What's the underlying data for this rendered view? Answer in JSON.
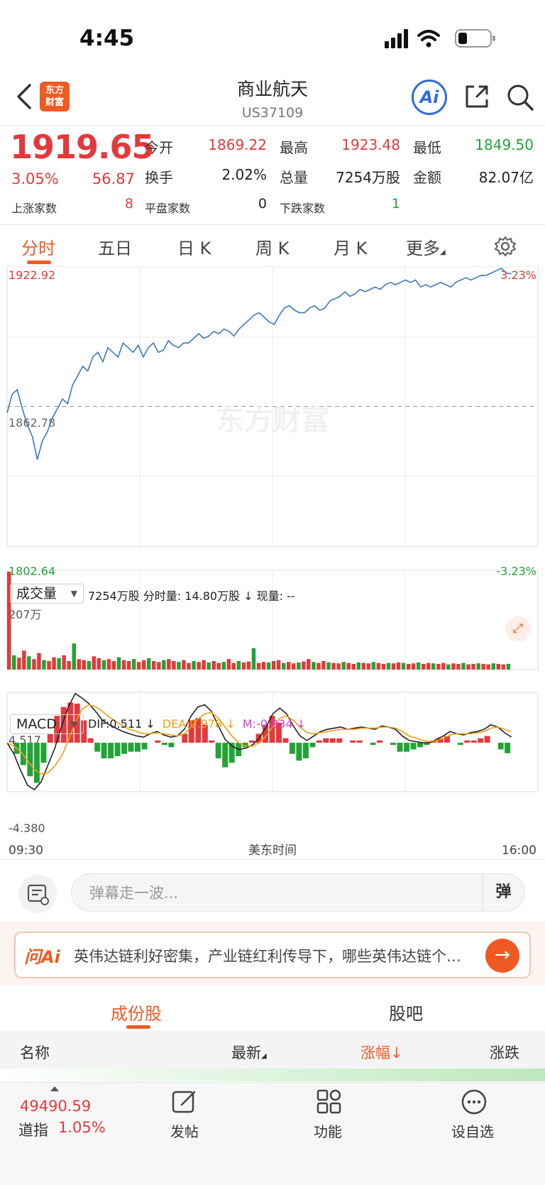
{
  "status_bar": {
    "time": "4:45"
  },
  "header": {
    "title": "商业航天",
    "code": "US37109",
    "logo_text_line1": "东方",
    "logo_text_line2": "财富",
    "ai_label": "Ai"
  },
  "quote": {
    "price": "1919.65",
    "change_pct": "3.05%",
    "change": "56.87",
    "open_label": "今开",
    "open": "1869.22",
    "high_label": "最高",
    "high": "1923.48",
    "low_label": "最低",
    "low": "1849.50",
    "turnover_label": "换手",
    "turnover": "2.02%",
    "volume_label": "总量",
    "volume": "7254万股",
    "amount_label": "金额",
    "amount": "82.07亿",
    "up_label": "上涨家数",
    "up": "8",
    "flat_label": "平盘家数",
    "flat": "0",
    "down_label": "下跌家数",
    "down": "1"
  },
  "tabs": [
    "分时",
    "五日",
    "日 K",
    "周 K",
    "月 K",
    "更多"
  ],
  "chart_data": [
    {
      "type": "line",
      "title": "",
      "y_labels": {
        "top": "1922.92",
        "mid": "1862.78",
        "bottom": "1802.64",
        "top_pct": "3.23%",
        "bottom_pct": "-3.23%"
      },
      "ylim": [
        1802.64,
        1922.92
      ],
      "prev_close": 1862.78,
      "watermark": "东方财富",
      "x_labels": [
        "09:30",
        "美东时间",
        "16:00"
      ],
      "series": [
        {
          "values": [
            1860,
            1868,
            1870,
            1862,
            1855,
            1850,
            1840,
            1848,
            1852,
            1858,
            1862,
            1866,
            1864,
            1872,
            1876,
            1880,
            1878,
            1884,
            1886,
            1882,
            1888,
            1886,
            1884,
            1890,
            1888,
            1886,
            1889,
            1884,
            1888,
            1890,
            1886,
            1887,
            1891,
            1889,
            1888,
            1890,
            1890,
            1892,
            1894,
            1892,
            1893,
            1895,
            1894,
            1896,
            1895,
            1893,
            1896,
            1898,
            1900,
            1902,
            1903,
            1901,
            1899,
            1898,
            1902,
            1905,
            1906,
            1904,
            1903,
            1903,
            1905,
            1906,
            1904,
            1905,
            1908,
            1909,
            1910,
            1912,
            1910,
            1911,
            1913,
            1912,
            1913,
            1914,
            1913,
            1915,
            1916,
            1915,
            1916,
            1917,
            1916,
            1917,
            1914,
            1915,
            1914,
            1915,
            1916,
            1915,
            1914,
            1916,
            1917,
            1918,
            1917,
            1918,
            1919,
            1919,
            1920,
            1921,
            1922,
            1920,
            1919.65
          ]
        }
      ]
    },
    {
      "type": "bar",
      "title": "",
      "label": "成交量",
      "info": "7254万股  分时量: 14.80万股 ↓ 现量: --",
      "max_label": "207万",
      "ylim": [
        0,
        207
      ],
      "values": [
        207,
        30,
        25,
        40,
        28,
        22,
        35,
        20,
        18,
        26,
        24,
        30,
        18,
        55,
        22,
        20,
        18,
        28,
        24,
        20,
        22,
        18,
        26,
        20,
        18,
        22,
        16,
        20,
        24,
        18,
        16,
        20,
        22,
        18,
        16,
        20,
        14,
        18,
        16,
        20,
        15,
        18,
        14,
        16,
        22,
        14,
        18,
        15,
        17,
        45,
        14,
        16,
        15,
        18,
        20,
        14,
        16,
        13,
        15,
        17,
        22,
        16,
        14,
        18,
        15,
        14,
        13,
        16,
        14,
        12,
        15,
        14,
        13,
        16,
        14,
        12,
        14,
        13,
        15,
        14,
        12,
        13,
        15,
        12,
        14,
        13,
        12,
        14,
        11,
        13,
        12,
        14,
        11,
        12,
        13,
        12,
        11,
        13,
        12,
        11,
        12
      ]
    },
    {
      "type": "line",
      "title": "",
      "label": "MACD",
      "dif_label": "DIF:0.511 ↓",
      "dea_label": "DEA:0.978 ↓",
      "m_label": "M:-0.934 ↓",
      "y_labels": {
        "top": "4.517",
        "bottom": "-4.380"
      },
      "ylim": [
        -4.38,
        4.517
      ],
      "series": [
        {
          "name": "DIF",
          "values": [
            0,
            -1,
            -2.5,
            -3.8,
            -4.2,
            -3.5,
            -2,
            -0.5,
            1.5,
            3.2,
            4.4,
            4,
            3.5,
            2.8,
            2,
            1.6,
            1.3,
            1,
            0.8,
            0.6,
            0.5,
            0.8,
            1,
            0.7,
            0.5,
            0.6,
            1.2,
            2.4,
            3.2,
            3.4,
            2.8,
            1.5,
            0.3,
            -0.3,
            -0.6,
            -0.5,
            -0.2,
            0.4,
            1.4,
            2.6,
            3.1,
            2.6,
            1.5,
            0.6,
            0.2,
            0.6,
            1,
            1.2,
            1.3,
            1.4,
            1.2,
            1.3,
            1.4,
            1.3,
            1.2,
            1.5,
            1.4,
            1.2,
            0.6,
            0.2,
            0.1,
            0,
            0,
            0.3,
            0.6,
            1,
            0.8,
            0.7,
            0.9,
            1,
            1.2,
            1.6,
            1.4,
            0.9,
            0.51
          ]
        },
        {
          "name": "DEA",
          "values": [
            0,
            -0.3,
            -0.8,
            -1.6,
            -2.4,
            -2.8,
            -2.7,
            -2.1,
            -1.2,
            0.2,
            1.8,
            3,
            3.4,
            3.2,
            2.8,
            2.3,
            1.9,
            1.5,
            1.2,
            1,
            0.8,
            0.8,
            0.9,
            0.8,
            0.7,
            0.6,
            0.8,
            1.4,
            2.1,
            2.6,
            2.7,
            2.2,
            1.4,
            0.6,
            0,
            -0.3,
            -0.3,
            0,
            0.6,
            1.4,
            2.2,
            2.4,
            2,
            1.4,
            0.9,
            0.8,
            0.9,
            1,
            1.1,
            1.2,
            1.2,
            1.2,
            1.3,
            1.3,
            1.3,
            1.4,
            1.4,
            1.3,
            1,
            0.6,
            0.4,
            0.2,
            0.1,
            0.2,
            0.4,
            0.7,
            0.8,
            0.8,
            0.8,
            0.9,
            1,
            1.3,
            1.4,
            1.2,
            0.978
          ]
        }
      ],
      "histogram": [
        0,
        -1,
        -2,
        -3,
        -3.6,
        -1.8,
        0.8,
        2.4,
        3.2,
        3.6,
        3.5,
        2,
        0.4,
        -0.8,
        -1.4,
        -1.4,
        -1.2,
        -1,
        -0.8,
        -0.8,
        -0.6,
        0,
        0.2,
        -0.2,
        -0.4,
        0,
        0.8,
        2,
        2.2,
        1.6,
        0.2,
        -1.4,
        -2.2,
        -1.8,
        -1.2,
        -0.4,
        0.2,
        0.8,
        1.6,
        2.4,
        1.8,
        0.4,
        -1,
        -1.6,
        -1.4,
        -0.4,
        0.2,
        0.4,
        0.4,
        0.4,
        0,
        0.2,
        0.2,
        0,
        -0.2,
        0.2,
        0,
        -0.2,
        -0.8,
        -0.8,
        -0.6,
        -0.4,
        -0.2,
        0.2,
        0.4,
        0.6,
        0,
        -0.2,
        0.2,
        0.2,
        0.4,
        0.6,
        0,
        -0.6,
        -0.934
      ]
    }
  ],
  "danmaku": {
    "placeholder": "弹幕走一波...",
    "toggle": "弹"
  },
  "ask_ai": {
    "logo": "问Ai",
    "text": "英伟达链利好密集，产业链红利传导下，哪些英伟达链个股值得关注？"
  },
  "section_tabs": [
    "成份股",
    "股吧"
  ],
  "table_headers": [
    "名称",
    "最新",
    "涨幅↓",
    "涨跌"
  ],
  "bottom_nav": {
    "index_value": "49490.59",
    "index_name": "道指",
    "index_pct": "1.05%",
    "items": [
      "发帖",
      "功能",
      "设自选"
    ]
  },
  "colors": {
    "accent": "#f05a22",
    "up": "#e4393c",
    "down": "#22a336",
    "price_line": "#3a78c2",
    "dea": "#f39c12"
  }
}
